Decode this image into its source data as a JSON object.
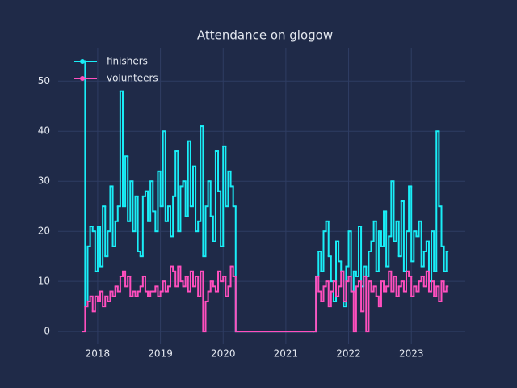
{
  "chart_data": {
    "type": "line",
    "title": "Attendance on glogow",
    "line_shape": "hv",
    "grid": true,
    "legend": "upper left",
    "x": [
      2017.76,
      2017.8,
      2017.84,
      2017.88,
      2017.92,
      2017.96,
      2018.0,
      2018.04,
      2018.08,
      2018.12,
      2018.16,
      2018.2,
      2018.24,
      2018.28,
      2018.32,
      2018.36,
      2018.4,
      2018.44,
      2018.48,
      2018.52,
      2018.56,
      2018.6,
      2018.64,
      2018.68,
      2018.72,
      2018.76,
      2018.8,
      2018.84,
      2018.88,
      2018.92,
      2018.96,
      2019.0,
      2019.04,
      2019.08,
      2019.12,
      2019.16,
      2019.2,
      2019.24,
      2019.28,
      2019.32,
      2019.36,
      2019.4,
      2019.44,
      2019.48,
      2019.52,
      2019.56,
      2019.6,
      2019.64,
      2019.68,
      2019.72,
      2019.76,
      2019.8,
      2019.84,
      2019.88,
      2019.92,
      2019.96,
      2020.0,
      2020.04,
      2020.08,
      2020.12,
      2020.16,
      2020.2,
      2021.44,
      2021.48,
      2021.52,
      2021.56,
      2021.6,
      2021.64,
      2021.68,
      2021.72,
      2021.76,
      2021.8,
      2021.84,
      2021.88,
      2021.92,
      2021.96,
      2022.0,
      2022.04,
      2022.08,
      2022.12,
      2022.16,
      2022.2,
      2022.24,
      2022.28,
      2022.32,
      2022.36,
      2022.4,
      2022.44,
      2022.48,
      2022.52,
      2022.56,
      2022.6,
      2022.64,
      2022.68,
      2022.72,
      2022.76,
      2022.8,
      2022.84,
      2022.88,
      2022.92,
      2022.96,
      2023.0,
      2023.04,
      2023.08,
      2023.12,
      2023.16,
      2023.2,
      2023.24,
      2023.28,
      2023.32,
      2023.36,
      2023.4,
      2023.44,
      2023.48,
      2023.52,
      2023.56
    ],
    "series": [
      {
        "name": "finishers",
        "color": "#19eef7",
        "values": [
          54,
          5,
          17,
          21,
          20,
          12,
          21,
          13,
          25,
          15,
          20,
          29,
          17,
          22,
          25,
          48,
          25,
          35,
          22,
          30,
          20,
          27,
          16,
          15,
          27,
          28,
          22,
          30,
          24,
          20,
          32,
          25,
          40,
          22,
          25,
          19,
          27,
          36,
          20,
          29,
          30,
          23,
          38,
          25,
          33,
          20,
          22,
          41,
          15,
          25,
          30,
          23,
          18,
          36,
          28,
          17,
          37,
          25,
          32,
          29,
          25,
          0,
          0,
          11,
          16,
          12,
          20,
          22,
          15,
          10,
          6,
          18,
          14,
          12,
          5,
          13,
          20,
          8,
          12,
          11,
          21,
          9,
          13,
          11,
          16,
          18,
          22,
          12,
          20,
          17,
          24,
          13,
          19,
          30,
          18,
          22,
          15,
          26,
          12,
          20,
          29,
          14,
          20,
          19,
          22,
          13,
          16,
          18,
          10,
          20,
          12,
          40,
          25,
          17,
          12,
          16
        ]
      },
      {
        "name": "volunteers",
        "color": "#ff4fbe",
        "values": [
          0,
          5,
          6,
          7,
          4,
          7,
          6,
          8,
          5,
          7,
          6,
          8,
          7,
          9,
          8,
          11,
          12,
          9,
          11,
          7,
          8,
          7,
          8,
          9,
          11,
          8,
          7,
          8,
          8,
          9,
          7,
          8,
          10,
          8,
          9,
          13,
          12,
          9,
          13,
          10,
          9,
          11,
          8,
          12,
          9,
          11,
          7,
          12,
          0,
          6,
          8,
          10,
          9,
          8,
          12,
          10,
          11,
          7,
          9,
          13,
          11,
          0,
          0,
          11,
          8,
          6,
          9,
          10,
          5,
          8,
          10,
          7,
          9,
          12,
          6,
          10,
          11,
          8,
          0,
          9,
          10,
          4,
          11,
          0,
          10,
          8,
          9,
          7,
          5,
          10,
          8,
          9,
          12,
          8,
          11,
          7,
          9,
          10,
          8,
          12,
          11,
          7,
          9,
          8,
          10,
          11,
          9,
          12,
          8,
          10,
          7,
          9,
          6,
          10,
          8,
          9
        ]
      }
    ],
    "xlim": [
      2017.37,
      2023.86
    ],
    "xticks": [
      2018,
      2019,
      2020,
      2021,
      2022,
      2023
    ],
    "ylim": [
      -2.4,
      56.5
    ],
    "yticks": [
      0,
      10,
      20,
      30,
      40,
      50
    ]
  }
}
